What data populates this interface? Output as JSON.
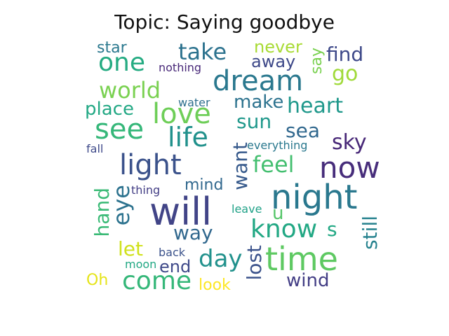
{
  "title": "Topic: Saying goodbye",
  "words": [
    {
      "text": "will",
      "color": "#414487"
    },
    {
      "text": "night",
      "color": "#2a788e"
    },
    {
      "text": "time",
      "color": "#5ec962"
    },
    {
      "text": "now",
      "color": "#472d7b"
    },
    {
      "text": "light",
      "color": "#3b528b"
    },
    {
      "text": "see",
      "color": "#35b779"
    },
    {
      "text": "dream",
      "color": "#2a788e"
    },
    {
      "text": "love",
      "color": "#6ece58"
    },
    {
      "text": "life",
      "color": "#21918c"
    },
    {
      "text": "know",
      "color": "#22a884"
    },
    {
      "text": "come",
      "color": "#35b779"
    },
    {
      "text": "day",
      "color": "#21918c"
    },
    {
      "text": "one",
      "color": "#25ab82"
    },
    {
      "text": "take",
      "color": "#2c728e"
    },
    {
      "text": "world",
      "color": "#7ad151"
    },
    {
      "text": "heart",
      "color": "#1f988b"
    },
    {
      "text": "eye",
      "color": "#2c728e"
    },
    {
      "text": "feel",
      "color": "#44bf70"
    },
    {
      "text": "go",
      "color": "#a0da39"
    },
    {
      "text": "sky",
      "color": "#482878"
    },
    {
      "text": "find",
      "color": "#3e4989"
    },
    {
      "text": "sun",
      "color": "#1f988b"
    },
    {
      "text": "sea",
      "color": "#31688e"
    },
    {
      "text": "want",
      "color": "#375a8c"
    },
    {
      "text": "lost",
      "color": "#3b528b"
    },
    {
      "text": "still",
      "color": "#26828e"
    },
    {
      "text": "hand",
      "color": "#3aba76"
    },
    {
      "text": "way",
      "color": "#31688e"
    },
    {
      "text": "let",
      "color": "#d0e11c"
    },
    {
      "text": "make",
      "color": "#2c728e"
    },
    {
      "text": "place",
      "color": "#22a884"
    },
    {
      "text": "end",
      "color": "#3e4989"
    },
    {
      "text": "wind",
      "color": "#433e85"
    },
    {
      "text": "s",
      "color": "#22a884"
    },
    {
      "text": "u",
      "color": "#54c568"
    },
    {
      "text": "mind",
      "color": "#31688e"
    },
    {
      "text": "never",
      "color": "#a8db34"
    },
    {
      "text": "away",
      "color": "#3e4989"
    },
    {
      "text": "say",
      "color": "#7ad151"
    },
    {
      "text": "star",
      "color": "#2a788e"
    },
    {
      "text": "look",
      "color": "#fde725"
    },
    {
      "text": "Oh",
      "color": "#e5e419"
    },
    {
      "text": "nothing",
      "color": "#482878"
    },
    {
      "text": "water",
      "color": "#2e6f8e"
    },
    {
      "text": "everything",
      "color": "#2a788e"
    },
    {
      "text": "fall",
      "color": "#3e4989"
    },
    {
      "text": "thing",
      "color": "#433e85"
    },
    {
      "text": "leave",
      "color": "#1fa187"
    },
    {
      "text": "back",
      "color": "#3b528b"
    },
    {
      "text": "moon",
      "color": "#22a884"
    }
  ]
}
